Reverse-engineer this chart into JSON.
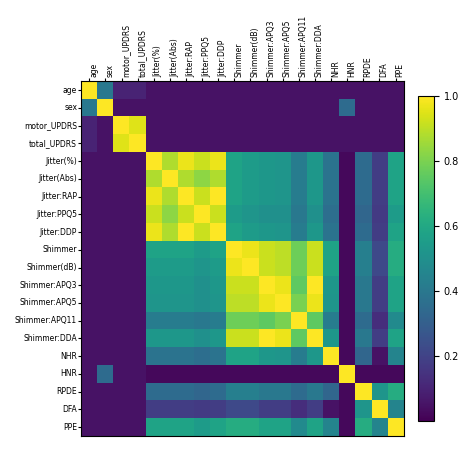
{
  "labels": [
    "age",
    "sex",
    "motor_UPDRS",
    "total_UPDRS",
    "Jitter(%)",
    "Jitter(Abs)",
    "Jitter:RAP",
    "Jitter:PPQ5",
    "Jitter:DDP",
    "Shimmer",
    "Shimmer(dB)",
    "Shimmer:APQ3",
    "Shimmer:APQ5",
    "Shimmer:APQ11",
    "Shimmer:DDA",
    "NHR",
    "HNR",
    "RPDE",
    "DFA",
    "PPE"
  ],
  "matrix": [
    [
      1.0,
      0.4,
      0.1,
      0.1,
      0.05,
      0.05,
      0.05,
      0.05,
      0.05,
      0.05,
      0.05,
      0.05,
      0.05,
      0.05,
      0.05,
      0.05,
      0.05,
      0.05,
      0.05,
      0.05
    ],
    [
      0.4,
      1.0,
      0.05,
      0.05,
      0.05,
      0.05,
      0.05,
      0.05,
      0.05,
      0.05,
      0.05,
      0.05,
      0.05,
      0.05,
      0.05,
      0.05,
      0.35,
      0.05,
      0.05,
      0.05
    ],
    [
      0.1,
      0.05,
      1.0,
      0.95,
      0.05,
      0.05,
      0.05,
      0.05,
      0.05,
      0.05,
      0.05,
      0.05,
      0.05,
      0.05,
      0.05,
      0.05,
      0.05,
      0.05,
      0.05,
      0.05
    ],
    [
      0.1,
      0.05,
      0.95,
      1.0,
      0.05,
      0.05,
      0.05,
      0.05,
      0.05,
      0.05,
      0.05,
      0.05,
      0.05,
      0.05,
      0.05,
      0.05,
      0.05,
      0.05,
      0.05,
      0.05
    ],
    [
      0.05,
      0.05,
      0.05,
      0.05,
      1.0,
      0.88,
      0.97,
      0.92,
      0.97,
      0.58,
      0.55,
      0.53,
      0.52,
      0.42,
      0.53,
      0.38,
      0.02,
      0.35,
      0.18,
      0.58
    ],
    [
      0.05,
      0.05,
      0.05,
      0.05,
      0.88,
      1.0,
      0.88,
      0.83,
      0.88,
      0.58,
      0.55,
      0.53,
      0.52,
      0.42,
      0.53,
      0.38,
      0.02,
      0.35,
      0.18,
      0.58
    ],
    [
      0.05,
      0.05,
      0.05,
      0.05,
      0.97,
      0.88,
      1.0,
      0.92,
      1.0,
      0.58,
      0.55,
      0.53,
      0.52,
      0.42,
      0.53,
      0.38,
      0.02,
      0.35,
      0.18,
      0.58
    ],
    [
      0.05,
      0.05,
      0.05,
      0.05,
      0.92,
      0.83,
      0.92,
      1.0,
      0.92,
      0.55,
      0.52,
      0.5,
      0.5,
      0.4,
      0.5,
      0.36,
      0.02,
      0.33,
      0.17,
      0.55
    ],
    [
      0.05,
      0.05,
      0.05,
      0.05,
      0.97,
      0.88,
      1.0,
      0.92,
      1.0,
      0.58,
      0.55,
      0.53,
      0.52,
      0.42,
      0.53,
      0.38,
      0.02,
      0.35,
      0.18,
      0.58
    ],
    [
      0.05,
      0.05,
      0.05,
      0.05,
      0.58,
      0.58,
      0.58,
      0.55,
      0.58,
      1.0,
      0.97,
      0.92,
      0.9,
      0.78,
      0.92,
      0.58,
      0.02,
      0.43,
      0.22,
      0.62
    ],
    [
      0.05,
      0.05,
      0.05,
      0.05,
      0.55,
      0.55,
      0.55,
      0.52,
      0.55,
      0.97,
      1.0,
      0.92,
      0.9,
      0.78,
      0.92,
      0.58,
      0.02,
      0.43,
      0.22,
      0.62
    ],
    [
      0.05,
      0.05,
      0.05,
      0.05,
      0.53,
      0.53,
      0.53,
      0.5,
      0.53,
      0.92,
      0.92,
      1.0,
      0.97,
      0.75,
      1.0,
      0.53,
      0.02,
      0.4,
      0.18,
      0.58
    ],
    [
      0.05,
      0.05,
      0.05,
      0.05,
      0.52,
      0.52,
      0.52,
      0.5,
      0.52,
      0.9,
      0.9,
      0.97,
      1.0,
      0.8,
      0.97,
      0.52,
      0.02,
      0.4,
      0.18,
      0.58
    ],
    [
      0.05,
      0.05,
      0.05,
      0.05,
      0.42,
      0.42,
      0.42,
      0.4,
      0.42,
      0.78,
      0.78,
      0.75,
      0.8,
      1.0,
      0.75,
      0.42,
      0.02,
      0.35,
      0.13,
      0.48
    ],
    [
      0.05,
      0.05,
      0.05,
      0.05,
      0.53,
      0.53,
      0.53,
      0.5,
      0.53,
      0.92,
      0.92,
      1.0,
      0.97,
      0.75,
      1.0,
      0.53,
      0.02,
      0.4,
      0.18,
      0.58
    ],
    [
      0.05,
      0.05,
      0.05,
      0.05,
      0.38,
      0.38,
      0.38,
      0.36,
      0.38,
      0.58,
      0.58,
      0.53,
      0.52,
      0.42,
      0.53,
      1.0,
      0.02,
      0.33,
      0.05,
      0.45
    ],
    [
      0.05,
      0.35,
      0.05,
      0.05,
      0.02,
      0.02,
      0.02,
      0.02,
      0.02,
      0.02,
      0.02,
      0.02,
      0.02,
      0.02,
      0.02,
      0.02,
      1.0,
      0.02,
      0.02,
      0.02
    ],
    [
      0.05,
      0.05,
      0.05,
      0.05,
      0.35,
      0.35,
      0.35,
      0.33,
      0.35,
      0.43,
      0.43,
      0.4,
      0.4,
      0.35,
      0.4,
      0.33,
      0.02,
      1.0,
      0.52,
      0.62
    ],
    [
      0.05,
      0.05,
      0.05,
      0.05,
      0.18,
      0.18,
      0.18,
      0.17,
      0.18,
      0.22,
      0.22,
      0.18,
      0.18,
      0.13,
      0.18,
      0.05,
      0.02,
      0.52,
      1.0,
      0.45
    ],
    [
      0.05,
      0.05,
      0.05,
      0.05,
      0.58,
      0.58,
      0.58,
      0.55,
      0.58,
      0.62,
      0.62,
      0.58,
      0.58,
      0.48,
      0.58,
      0.45,
      0.02,
      0.62,
      0.45,
      1.0
    ]
  ],
  "cmap": "viridis",
  "vmin": 0.0,
  "vmax": 1.0,
  "colorbar_ticks": [
    0.2,
    0.4,
    0.6,
    0.8,
    1.0
  ],
  "figsize": [
    4.74,
    4.51
  ],
  "dpi": 100,
  "tick_fontsize": 5.5,
  "cbar_fontsize": 7
}
